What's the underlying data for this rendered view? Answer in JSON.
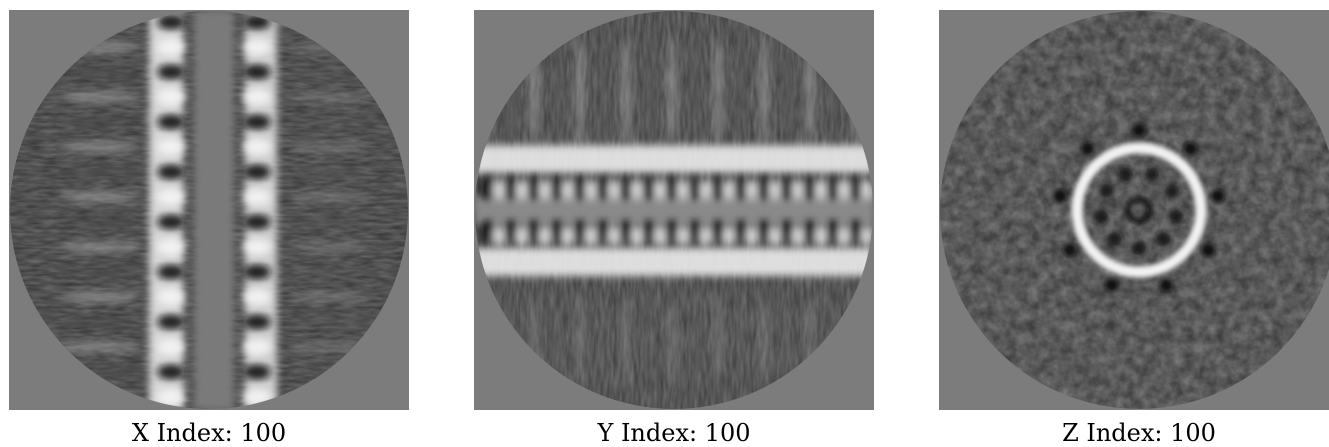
{
  "slices": [
    {
      "axis": "X",
      "caption": "X Index: 100",
      "index": 100
    },
    {
      "axis": "Y",
      "caption": "Y Index: 100",
      "index": 100
    },
    {
      "axis": "Z",
      "caption": "Z Index: 100",
      "index": 100
    }
  ],
  "colors": {
    "background": "#ffffff",
    "mask_gray": "#7c7c7c",
    "dark_feature": "#0a0a0a",
    "bright_feature": "#f0f0f0"
  }
}
